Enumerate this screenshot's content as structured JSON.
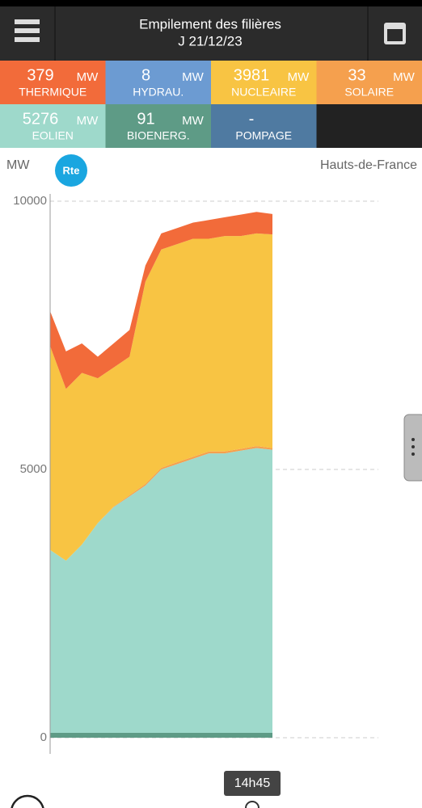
{
  "header": {
    "title": "Empilement des filières",
    "date": "J 21/12/23"
  },
  "tiles": [
    {
      "value": "379",
      "unit": "MW",
      "name": "THERMIQUE",
      "color": "#f26b3a"
    },
    {
      "value": "8",
      "unit": "MW",
      "name": "HYDRAU.",
      "color": "#6c9bd2"
    },
    {
      "value": "3981",
      "unit": "MW",
      "name": "NUCLEAIRE",
      "color": "#f8c443"
    },
    {
      "value": "33",
      "unit": "MW",
      "name": "SOLAIRE",
      "color": "#f5a04e"
    },
    {
      "value": "5276",
      "unit": "MW",
      "name": "EOLIEN",
      "color": "#9ed9cb"
    },
    {
      "value": "91",
      "unit": "MW",
      "name": "BIOENERG.",
      "color": "#5e9b86"
    },
    {
      "value": "-",
      "name": "POMPAGE",
      "color": "#4f7aa1"
    }
  ],
  "chart_data": {
    "type": "area",
    "stacked": true,
    "y_label": "MW",
    "region": "Hauts-de-France",
    "logo": "Rte",
    "categories": [
      null,
      null,
      null,
      null,
      null,
      null,
      null,
      null,
      null,
      null,
      null,
      null,
      null,
      null,
      null
    ],
    "series": [
      {
        "color": "#5e9b86",
        "values": [
          90,
          90,
          90,
          90,
          90,
          90,
          90,
          90,
          90,
          90,
          90,
          90,
          90,
          90,
          91
        ]
      },
      {
        "color": "#9ed9cb",
        "values": [
          3410,
          3210,
          3510,
          3910,
          4210,
          4410,
          4610,
          4910,
          5010,
          5110,
          5210,
          5210,
          5260,
          5310,
          5276
        ]
      },
      {
        "color": "#f5a04e",
        "values": [
          0,
          0,
          0,
          0,
          10,
          20,
          30,
          30,
          35,
          35,
          35,
          35,
          34,
          34,
          33
        ]
      },
      {
        "color": "#f8c443",
        "values": [
          3800,
          3200,
          3200,
          2700,
          2590,
          2580,
          3770,
          4070,
          4065,
          4065,
          3965,
          4015,
          3966,
          3966,
          3981
        ]
      },
      {
        "color": "#f26b3a",
        "values": [
          650,
          700,
          550,
          400,
          450,
          500,
          300,
          300,
          300,
          300,
          350,
          350,
          400,
          400,
          379
        ]
      }
    ],
    "ylim": [
      0,
      10000
    ],
    "yticks": [
      0,
      5000,
      10000
    ],
    "grid": true,
    "cursor_label": "14h45"
  }
}
